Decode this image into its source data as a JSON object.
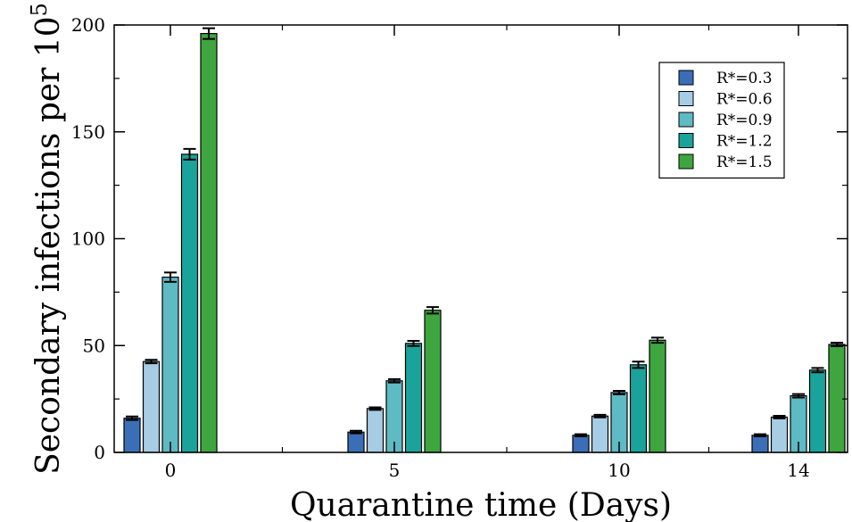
{
  "chart_data": {
    "type": "bar",
    "xlabel": "Quarantine time (Days)",
    "ylabel": "Secondary infections per 10",
    "ylabel_superscript": "5",
    "categories": [
      "0",
      "5",
      "10",
      "14"
    ],
    "ylim": [
      0,
      200
    ],
    "yticks": [
      0,
      50,
      100,
      150,
      200
    ],
    "grid": false,
    "legend_position": "top-right",
    "error_bars": true,
    "series": [
      {
        "name": "R*=0.3",
        "color": "#3a6fb7",
        "values": [
          16,
          9.5,
          8,
          8
        ],
        "errors": [
          0.8,
          0.6,
          0.5,
          0.5
        ]
      },
      {
        "name": "R*=0.6",
        "color": "#a6cde4",
        "values": [
          42.5,
          20.5,
          17,
          16.5
        ],
        "errors": [
          0.8,
          0.6,
          0.6,
          0.6
        ]
      },
      {
        "name": "R*=0.9",
        "color": "#5ebac3",
        "values": [
          82,
          33.5,
          28,
          26.5
        ],
        "errors": [
          2.2,
          0.8,
          0.8,
          0.8
        ]
      },
      {
        "name": "R*=1.2",
        "color": "#1aa39a",
        "values": [
          139.5,
          51,
          41,
          38.5
        ],
        "errors": [
          2.5,
          1.2,
          1.5,
          1.0
        ]
      },
      {
        "name": "R*=1.5",
        "color": "#3fa63f",
        "values": [
          196,
          66.5,
          52.5,
          50.5
        ],
        "errors": [
          2.5,
          1.5,
          1.2,
          0.8
        ]
      }
    ]
  }
}
